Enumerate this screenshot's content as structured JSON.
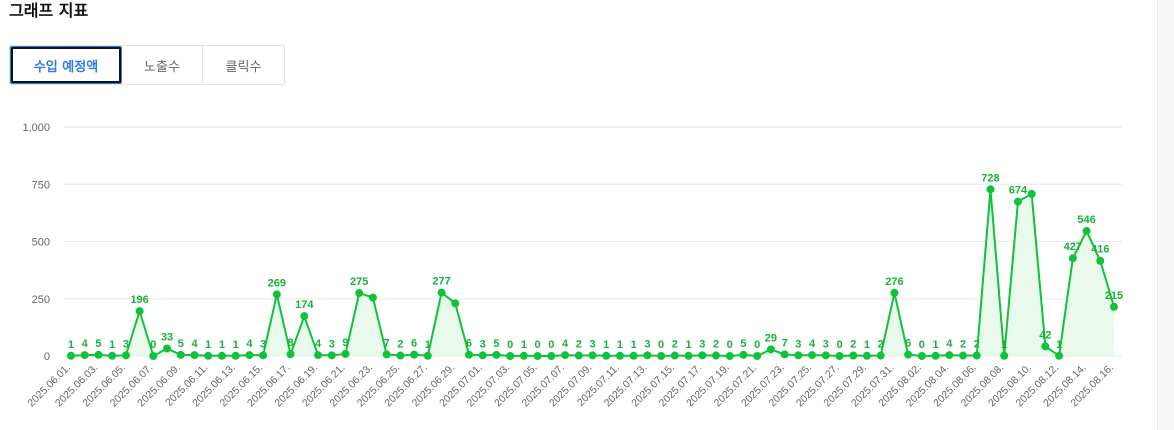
{
  "page": {
    "section_title": "그래프 지표",
    "tabs": [
      {
        "label": "수입 예정액",
        "active": true
      },
      {
        "label": "노출수",
        "active": false
      },
      {
        "label": "클릭수",
        "active": false
      }
    ]
  },
  "colors": {
    "series_line": "#10c23a",
    "series_fill": "#e9f9ec",
    "data_label": "#19b23a",
    "grid": "#e8e8e8",
    "active_tab": "#2f7be6"
  },
  "chart_data": {
    "type": "area",
    "title": "",
    "xlabel": "",
    "ylabel": "",
    "ylim": [
      0,
      1000
    ],
    "yticks": [
      "0",
      "250",
      "500",
      "750",
      "1,000"
    ],
    "grid": true,
    "legend": "none",
    "x": [
      "2025.06.01.",
      "2025.06.02.",
      "2025.06.03.",
      "2025.06.04.",
      "2025.06.05.",
      "2025.06.06.",
      "2025.06.07.",
      "2025.06.08.",
      "2025.06.09.",
      "2025.06.10.",
      "2025.06.11.",
      "2025.06.12.",
      "2025.06.13.",
      "2025.06.14.",
      "2025.06.15.",
      "2025.06.16.",
      "2025.06.17.",
      "2025.06.18.",
      "2025.06.19.",
      "2025.06.20.",
      "2025.06.21.",
      "2025.06.22.",
      "2025.06.23.",
      "2025.06.24.",
      "2025.06.25.",
      "2025.06.26.",
      "2025.06.27.",
      "2025.06.28.",
      "2025.06.29.",
      "2025.06.30.",
      "2025.07.01.",
      "2025.07.02.",
      "2025.07.03.",
      "2025.07.04.",
      "2025.07.05.",
      "2025.07.06.",
      "2025.07.07.",
      "2025.07.08.",
      "2025.07.09.",
      "2025.07.10.",
      "2025.07.11.",
      "2025.07.12.",
      "2025.07.13.",
      "2025.07.14.",
      "2025.07.15.",
      "2025.07.16.",
      "2025.07.17.",
      "2025.07.18.",
      "2025.07.19.",
      "2025.07.20.",
      "2025.07.21.",
      "2025.07.22.",
      "2025.07.23.",
      "2025.07.24.",
      "2025.07.25.",
      "2025.07.26.",
      "2025.07.27.",
      "2025.07.28.",
      "2025.07.29.",
      "2025.07.30.",
      "2025.07.31.",
      "2025.08.01.",
      "2025.08.02.",
      "2025.08.03.",
      "2025.08.04.",
      "2025.08.05.",
      "2025.08.06.",
      "2025.08.07.",
      "2025.08.08.",
      "2025.08.09.",
      "2025.08.10.",
      "2025.08.11.",
      "2025.08.12.",
      "2025.08.13.",
      "2025.08.14.",
      "2025.08.15.",
      "2025.08.16."
    ],
    "x_tick_labels": [
      "2025.06.01.",
      "2025.06.03.",
      "2025.06.05.",
      "2025.06.07.",
      "2025.06.09.",
      "2025.06.11.",
      "2025.06.13.",
      "2025.06.15.",
      "2025.06.17.",
      "2025.06.19.",
      "2025.06.21.",
      "2025.06.23.",
      "2025.06.25.",
      "2025.06.27.",
      "2025.06.29.",
      "2025.07.01.",
      "2025.07.03.",
      "2025.07.05.",
      "2025.07.07.",
      "2025.07.09.",
      "2025.07.11.",
      "2025.07.13.",
      "2025.07.15.",
      "2025.07.17.",
      "2025.07.19.",
      "2025.07.21.",
      "2025.07.23.",
      "2025.07.25.",
      "2025.07.27.",
      "2025.07.29.",
      "2025.07.31.",
      "2025.08.02.",
      "2025.08.04.",
      "2025.08.06.",
      "2025.08.08.",
      "2025.08.10.",
      "2025.08.12.",
      "2025.08.14.",
      "2025.08.16."
    ],
    "values": [
      1,
      4,
      5,
      1,
      3,
      196,
      0,
      33,
      5,
      4,
      1,
      1,
      1,
      4,
      3,
      269,
      8,
      174,
      4,
      3,
      9,
      275,
      255,
      7,
      2,
      6,
      1,
      277,
      230,
      6,
      3,
      5,
      0,
      1,
      0,
      0,
      4,
      2,
      3,
      1,
      1,
      1,
      3,
      0,
      2,
      1,
      3,
      2,
      0,
      5,
      0,
      29,
      7,
      3,
      4,
      3,
      0,
      2,
      1,
      2,
      276,
      6,
      0,
      1,
      4,
      2,
      2,
      728,
      1,
      674,
      708,
      42,
      1,
      427,
      546,
      416,
      215
    ],
    "data_labels": [
      "1",
      "4",
      "5",
      "1",
      "3",
      "196",
      "0",
      "33",
      "5",
      "4",
      "1",
      "1",
      "1",
      "4",
      "3",
      "269",
      "8",
      "174",
      "4",
      "3",
      "9",
      "275",
      "",
      "7",
      "2",
      "6",
      "1",
      "277",
      "",
      "6",
      "3",
      "5",
      "0",
      "1",
      "0",
      "0",
      "4",
      "2",
      "3",
      "1",
      "1",
      "1",
      "3",
      "0",
      "2",
      "1",
      "3",
      "2",
      "0",
      "5",
      "0",
      "29",
      "7",
      "3",
      "4",
      "3",
      "0",
      "2",
      "1",
      "2",
      "276",
      "6",
      "0",
      "1",
      "4",
      "2",
      "2",
      "728",
      "1",
      "674",
      "",
      "42",
      "1",
      "427",
      "546",
      "416",
      "215"
    ]
  }
}
